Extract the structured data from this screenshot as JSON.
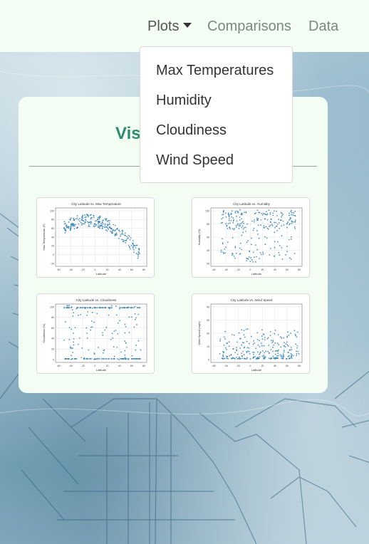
{
  "navbar": {
    "plots_label": "Plots",
    "comparisons_label": "Comparisons",
    "data_label": "Data"
  },
  "dropdown": {
    "items": [
      "Max Temperatures",
      "Humidity",
      "Cloudiness",
      "Wind Speed"
    ]
  },
  "card": {
    "title_visible": "Vis"
  },
  "thumbnails": [
    {
      "title": "City Latitude vs. Max Temperature",
      "xlabel": "Latitude",
      "ylabel": "Max Temperature (F)",
      "xticks": [
        "-60",
        "-40",
        "-20",
        "0",
        "20",
        "40",
        "60",
        "80"
      ],
      "yticks": [
        "100",
        "80",
        "60",
        "40",
        "20",
        "0",
        "-20"
      ],
      "pattern": "temp"
    },
    {
      "title": "City Latitude vs. Humidity",
      "xlabel": "Latitude",
      "ylabel": "Humidity (%)",
      "xticks": [
        "-60",
        "-40",
        "-20",
        "0",
        "20",
        "40",
        "60",
        "80"
      ],
      "yticks": [
        "100",
        "80",
        "60",
        "40",
        "20"
      ],
      "pattern": "humidity"
    },
    {
      "title": "City Latitude vs. Cloudiness",
      "xlabel": "Latitude",
      "ylabel": "Cloudiness (%)",
      "xticks": [
        "-60",
        "-40",
        "-20",
        "0",
        "20",
        "40",
        "60",
        "80"
      ],
      "yticks": [
        "100",
        "80",
        "60",
        "40",
        "20",
        "0"
      ],
      "pattern": "cloud"
    },
    {
      "title": "City Latitude vs. Wind Speed",
      "xlabel": "Latitude",
      "ylabel": "Wind Speed (mph)",
      "xticks": [
        "-60",
        "-40",
        "-20",
        "0",
        "20",
        "40",
        "60",
        "80"
      ],
      "yticks": [
        "40",
        "30",
        "20",
        "10",
        "0"
      ],
      "pattern": "wind"
    }
  ],
  "colors": {
    "navbar_bg": "#f3fdf3",
    "card_bg": "#f3fdf3",
    "title_green": "#2e8b6e",
    "link_gray": "#7a8a7c",
    "marker_blue": "#1f77b4"
  }
}
